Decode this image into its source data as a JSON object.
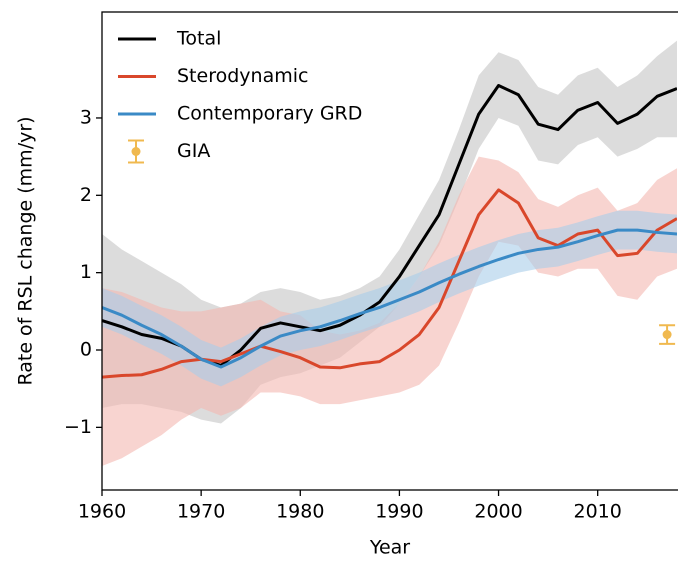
{
  "chart_data": {
    "type": "line",
    "x_label": "Year",
    "y_label": "Rate of RSL change (mm/yr)",
    "x": [
      1960,
      1962,
      1964,
      1966,
      1968,
      1970,
      1972,
      1974,
      1976,
      1978,
      1980,
      1982,
      1984,
      1986,
      1988,
      1990,
      1992,
      1994,
      1996,
      1998,
      2000,
      2002,
      2004,
      2006,
      2008,
      2010,
      2012,
      2014,
      2016,
      2018
    ],
    "xlim": [
      1960,
      2018
    ],
    "xticks": [
      1960,
      1970,
      1980,
      1990,
      2000,
      2010
    ],
    "ylim": [
      -1.81,
      4.37
    ],
    "yticks": [
      {
        "value": -1,
        "label": "−1"
      },
      0,
      1,
      2,
      3
    ],
    "legend": "upper left",
    "series": [
      {
        "name": "Total",
        "color": "#000000",
        "band_color": "#c4c4c4",
        "values": [
          0.38,
          0.3,
          0.2,
          0.15,
          0.05,
          -0.12,
          -0.2,
          0.0,
          0.28,
          0.35,
          0.3,
          0.25,
          0.32,
          0.45,
          0.62,
          0.95,
          1.35,
          1.75,
          2.4,
          3.05,
          3.42,
          3.3,
          2.92,
          2.85,
          3.1,
          3.2,
          2.93,
          3.05,
          3.28,
          3.38
        ],
        "upper": [
          1.5,
          1.3,
          1.15,
          1.0,
          0.85,
          0.65,
          0.55,
          0.6,
          0.75,
          0.8,
          0.75,
          0.65,
          0.7,
          0.8,
          0.95,
          1.3,
          1.75,
          2.2,
          2.85,
          3.55,
          3.85,
          3.75,
          3.4,
          3.3,
          3.55,
          3.65,
          3.4,
          3.55,
          3.8,
          4.0
        ],
        "lower": [
          -0.75,
          -0.7,
          -0.7,
          -0.75,
          -0.8,
          -0.9,
          -0.95,
          -0.75,
          -0.45,
          -0.35,
          -0.3,
          -0.2,
          -0.1,
          0.1,
          0.3,
          0.6,
          0.95,
          1.35,
          1.95,
          2.6,
          3.0,
          2.9,
          2.45,
          2.4,
          2.65,
          2.75,
          2.5,
          2.6,
          2.75,
          2.75
        ]
      },
      {
        "name": "Sterodynamic",
        "color": "#d9472b",
        "band_color": "#f4b8b0",
        "values": [
          -0.35,
          -0.33,
          -0.32,
          -0.25,
          -0.15,
          -0.12,
          -0.15,
          -0.05,
          0.05,
          -0.02,
          -0.1,
          -0.22,
          -0.23,
          -0.18,
          -0.15,
          0.0,
          0.2,
          0.55,
          1.15,
          1.75,
          2.07,
          1.9,
          1.45,
          1.35,
          1.5,
          1.55,
          1.22,
          1.25,
          1.55,
          1.7
        ],
        "upper": [
          0.8,
          0.75,
          0.65,
          0.55,
          0.5,
          0.5,
          0.55,
          0.6,
          0.65,
          0.5,
          0.45,
          0.25,
          0.2,
          0.25,
          0.35,
          0.6,
          0.95,
          1.4,
          2.0,
          2.5,
          2.45,
          2.3,
          1.95,
          1.85,
          2.0,
          2.1,
          1.8,
          1.9,
          2.2,
          2.35
        ],
        "lower": [
          -1.5,
          -1.4,
          -1.25,
          -1.1,
          -0.9,
          -0.75,
          -0.85,
          -0.75,
          -0.55,
          -0.55,
          -0.6,
          -0.7,
          -0.7,
          -0.65,
          -0.6,
          -0.55,
          -0.45,
          -0.2,
          0.35,
          0.95,
          1.4,
          1.35,
          1.0,
          0.95,
          1.05,
          1.05,
          0.7,
          0.65,
          0.95,
          1.05
        ]
      },
      {
        "name": "Contemporary GRD",
        "color": "#3a8ac6",
        "band_color": "#a9cdea",
        "values": [
          0.55,
          0.45,
          0.32,
          0.2,
          0.05,
          -0.12,
          -0.22,
          -0.1,
          0.05,
          0.18,
          0.25,
          0.3,
          0.38,
          0.47,
          0.55,
          0.65,
          0.75,
          0.87,
          0.98,
          1.08,
          1.17,
          1.25,
          1.3,
          1.33,
          1.4,
          1.48,
          1.55,
          1.55,
          1.52,
          1.5
        ],
        "upper": [
          0.8,
          0.7,
          0.57,
          0.45,
          0.3,
          0.13,
          0.03,
          0.15,
          0.3,
          0.43,
          0.5,
          0.55,
          0.63,
          0.72,
          0.8,
          0.9,
          1.0,
          1.12,
          1.23,
          1.33,
          1.42,
          1.5,
          1.55,
          1.58,
          1.65,
          1.73,
          1.8,
          1.8,
          1.77,
          1.75
        ],
        "lower": [
          0.3,
          0.2,
          0.07,
          -0.05,
          -0.2,
          -0.37,
          -0.47,
          -0.35,
          -0.2,
          -0.07,
          0.0,
          0.05,
          0.13,
          0.22,
          0.3,
          0.4,
          0.5,
          0.62,
          0.73,
          0.83,
          0.92,
          1.0,
          1.05,
          1.08,
          1.15,
          1.23,
          1.3,
          1.3,
          1.27,
          1.25
        ]
      },
      {
        "name": "GIA",
        "color": "#f0b94f",
        "x": [
          2017
        ],
        "values": [
          0.2
        ],
        "errors": [
          0.12
        ]
      }
    ]
  }
}
